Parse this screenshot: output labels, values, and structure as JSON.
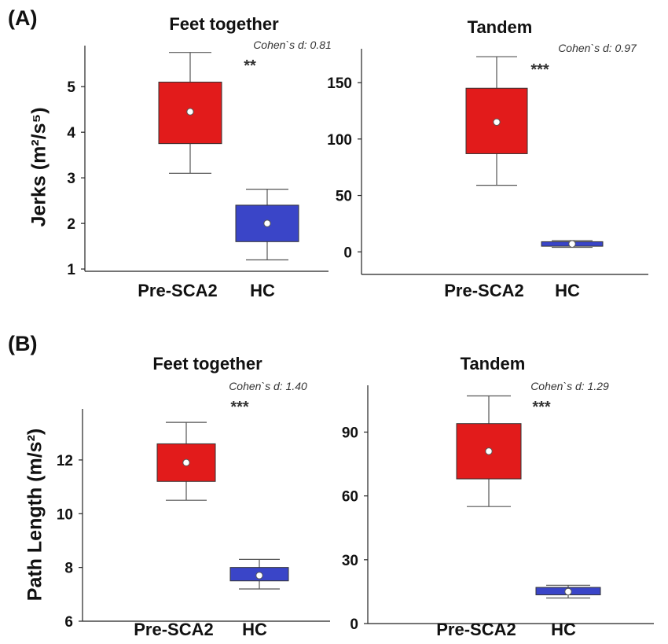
{
  "figure": {
    "panel_labels": [
      "(A)",
      "(B)"
    ],
    "row_ylabels": [
      "Jerks (m²/s⁵)",
      "Path Length (m/s²)"
    ],
    "group_colors": [
      "#e21b1b",
      "#3a45c8"
    ]
  },
  "chart_data": [
    {
      "type": "box",
      "panel": "(A)",
      "title": "Feet together",
      "ylabel": "Jerks (m²/s⁵)",
      "categories": [
        "Pre-SCA2",
        "HC"
      ],
      "yticks": [
        1,
        2,
        3,
        4,
        5
      ],
      "ylim": [
        0.95,
        5.9
      ],
      "effect_label": "Cohen`s d: 0.81",
      "significance": "**",
      "boxes": [
        {
          "category": "Pre-SCA2",
          "min": 3.1,
          "q1": 3.75,
          "median": 4.45,
          "q3": 5.1,
          "max": 5.75
        },
        {
          "category": "HC",
          "min": 1.2,
          "q1": 1.6,
          "median": 2.0,
          "q3": 2.4,
          "max": 2.75
        }
      ]
    },
    {
      "type": "box",
      "panel": "(A)",
      "title": "Tandem",
      "ylabel": "",
      "categories": [
        "Pre-SCA2",
        "HC"
      ],
      "yticks": [
        0,
        50,
        100,
        150
      ],
      "ylim": [
        -20,
        180
      ],
      "effect_label": "Cohen`s d: 0.97",
      "significance": "***",
      "boxes": [
        {
          "category": "Pre-SCA2",
          "min": 59,
          "q1": 87,
          "median": 115,
          "q3": 145,
          "max": 173
        },
        {
          "category": "HC",
          "min": 4,
          "q1": 5,
          "median": 7,
          "q3": 9,
          "max": 10
        }
      ]
    },
    {
      "type": "box",
      "panel": "(B)",
      "title": "Feet together",
      "ylabel": "Path Length (m/s²)",
      "categories": [
        "Pre-SCA2",
        "HC"
      ],
      "yticks": [
        6,
        8,
        10,
        12
      ],
      "ylim": [
        6,
        13.9
      ],
      "effect_label": "Cohen`s d: 1.40",
      "significance": "***",
      "boxes": [
        {
          "category": "Pre-SCA2",
          "min": 10.5,
          "q1": 11.2,
          "median": 11.9,
          "q3": 12.6,
          "max": 13.4
        },
        {
          "category": "HC",
          "min": 7.2,
          "q1": 7.5,
          "median": 7.7,
          "q3": 8.0,
          "max": 8.3
        }
      ]
    },
    {
      "type": "box",
      "panel": "(B)",
      "title": "Tandem",
      "ylabel": "",
      "categories": [
        "Pre-SCA2",
        "HC"
      ],
      "yticks": [
        0,
        30,
        60,
        90
      ],
      "ylim": [
        0,
        112
      ],
      "effect_label": "Cohen`s d: 1.29",
      "significance": "***",
      "boxes": [
        {
          "category": "Pre-SCA2",
          "min": 55,
          "q1": 68,
          "median": 81,
          "q3": 94,
          "max": 107
        },
        {
          "category": "HC",
          "min": 12,
          "q1": 13.5,
          "median": 15,
          "q3": 17,
          "max": 18
        }
      ]
    }
  ]
}
